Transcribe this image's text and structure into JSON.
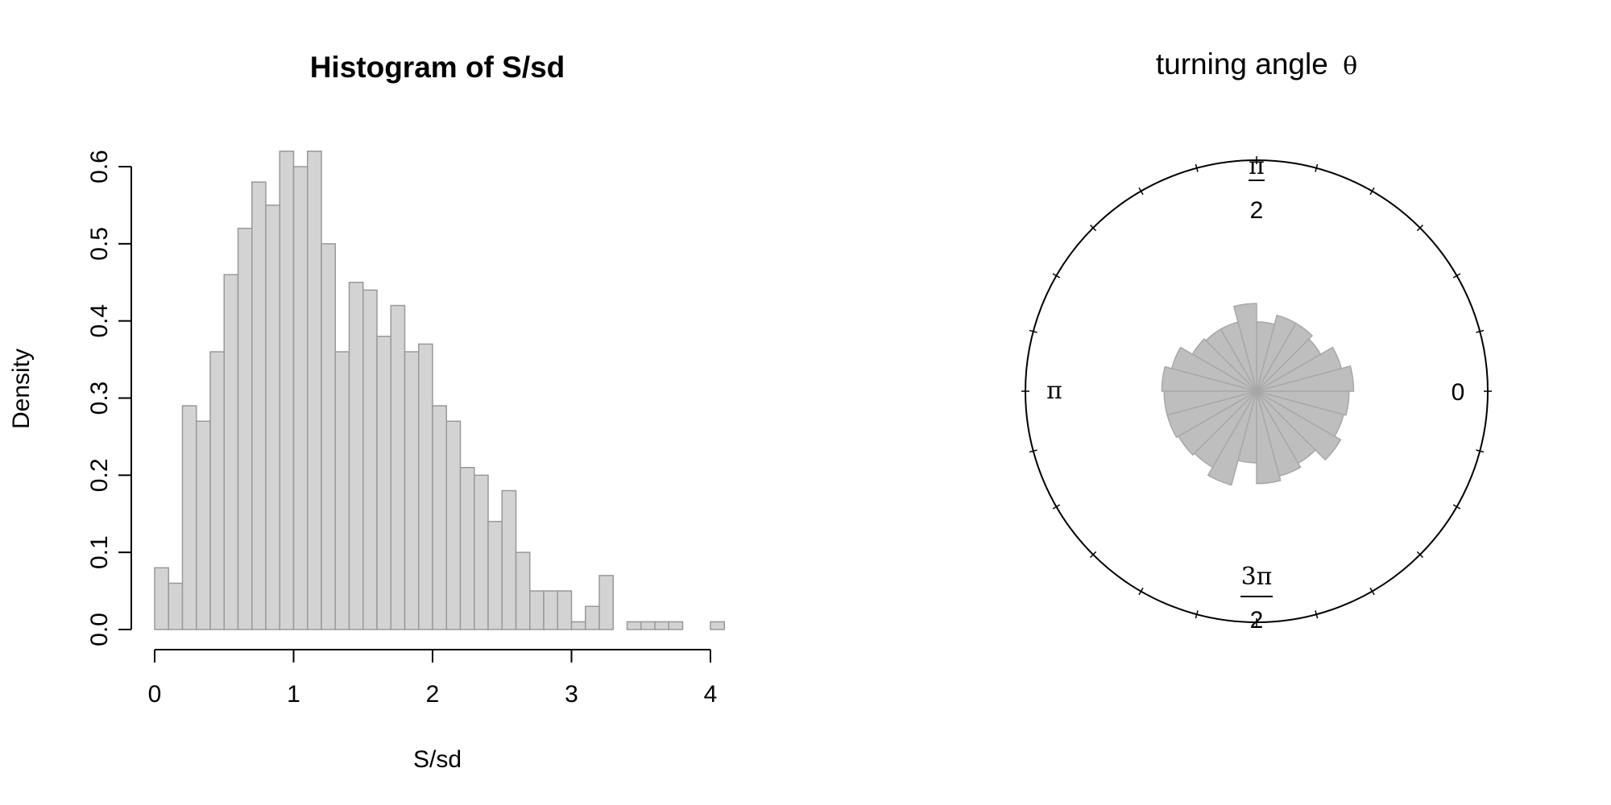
{
  "chart_data": [
    {
      "type": "bar",
      "title": "Histogram of S/sd",
      "xlabel": "S/sd",
      "ylabel": "Density",
      "bin_width": 0.1,
      "x_start": 0.0,
      "values": [
        0.08,
        0.06,
        0.29,
        0.27,
        0.36,
        0.46,
        0.52,
        0.58,
        0.55,
        0.62,
        0.6,
        0.62,
        0.5,
        0.36,
        0.45,
        0.44,
        0.38,
        0.42,
        0.36,
        0.37,
        0.29,
        0.27,
        0.21,
        0.2,
        0.14,
        0.18,
        0.1,
        0.05,
        0.05,
        0.05,
        0.01,
        0.03,
        0.07,
        0.0,
        0.01,
        0.01,
        0.01,
        0.01,
        0.0,
        0.0,
        0.01
      ],
      "xlim": [
        0,
        4.1
      ],
      "ylim": [
        0,
        0.6
      ],
      "x_ticks": [
        "0",
        "1",
        "2",
        "3",
        "4"
      ],
      "y_ticks": [
        "0.0",
        "0.1",
        "0.2",
        "0.3",
        "0.4",
        "0.5",
        "0.6"
      ],
      "bar_color": "#d3d3d3",
      "bar_border": "#999999",
      "grid": false
    },
    {
      "type": "rose",
      "title": "turning angle",
      "title_symbol": "θ",
      "bins": 24,
      "values": [
        0.42,
        0.38,
        0.32,
        0.34,
        0.34,
        0.3,
        0.38,
        0.31,
        0.31,
        0.32,
        0.38,
        0.41,
        0.4,
        0.4,
        0.39,
        0.38,
        0.42,
        0.31,
        0.4,
        0.38,
        0.36,
        0.42,
        0.39,
        0.4
      ],
      "direction_labels": {
        "east": "0",
        "north_num": "π",
        "north_den": "2",
        "west": "π",
        "south_num": "3π",
        "south_den": "2"
      },
      "tick_count": 24,
      "fill_color": "#bebebe",
      "border_color": "#a8a8a8"
    }
  ]
}
